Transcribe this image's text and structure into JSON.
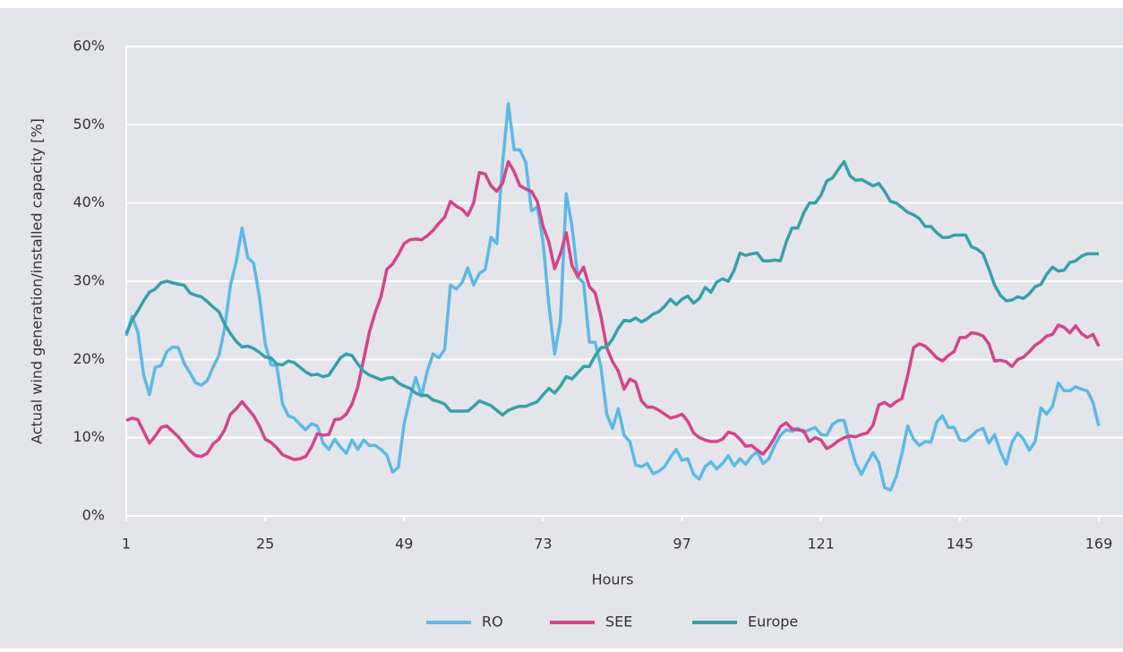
{
  "chart_data": {
    "type": "line",
    "y_label": "Actual wind generation/installed capacity [%]",
    "x_label": "Hours",
    "xlim": [
      1,
      169
    ],
    "xticks": [
      1,
      25,
      49,
      73,
      97,
      121,
      145,
      169
    ],
    "ylim": [
      0,
      60
    ],
    "yticks": [
      {
        "value": 0,
        "label": "0%"
      },
      {
        "value": 10,
        "label": "10%"
      },
      {
        "value": 20,
        "label": "20%"
      },
      {
        "value": 30,
        "label": "30%"
      },
      {
        "value": 40,
        "label": "40%"
      },
      {
        "value": 50,
        "label": "50%"
      },
      {
        "value": 60,
        "label": "60%"
      }
    ],
    "grid": true,
    "x": [
      1,
      2,
      3,
      4,
      5,
      6,
      7,
      8,
      9,
      10,
      11,
      12,
      13,
      14,
      15,
      16,
      17,
      18,
      19,
      20,
      21,
      22,
      23,
      24,
      25,
      26,
      27,
      28,
      29,
      30,
      31,
      32,
      33,
      34,
      35,
      36,
      37,
      38,
      39,
      40,
      41,
      42,
      43,
      44,
      45,
      46,
      47,
      48,
      49,
      50,
      51,
      52,
      53,
      54,
      55,
      56,
      57,
      58,
      59,
      60,
      61,
      62,
      63,
      64,
      65,
      66,
      67,
      68,
      69,
      70,
      71,
      72,
      73,
      74,
      75,
      76,
      77,
      78,
      79,
      80,
      81,
      82,
      83,
      84,
      85,
      86,
      87,
      88,
      89,
      90,
      91,
      92,
      93,
      94,
      95,
      96,
      97,
      98,
      99,
      100,
      101,
      102,
      103,
      104,
      105,
      106,
      107,
      108,
      109,
      110,
      111,
      112,
      113,
      114,
      115,
      116,
      117,
      118,
      119,
      120,
      121,
      122,
      123,
      124,
      125,
      126,
      127,
      128,
      129,
      130,
      131,
      132,
      133,
      134,
      135,
      136,
      137,
      138,
      139,
      140,
      141,
      142,
      143,
      144,
      145,
      146,
      147,
      148,
      149,
      150,
      151,
      152,
      153,
      154,
      155,
      156,
      157,
      158,
      159,
      160,
      161,
      162,
      163,
      164,
      165,
      166,
      167,
      168,
      169
    ],
    "series": [
      {
        "name": "RO",
        "color": "#5db9e6",
        "values": [
          23,
          25.5,
          23.5,
          18,
          15.5,
          19,
          19.2,
          21,
          21.6,
          21.5,
          19.5,
          18.3,
          17,
          16.7,
          17.3,
          19,
          20.5,
          24,
          29.5,
          32.5,
          36.8,
          33,
          32.3,
          28,
          22,
          19.3,
          19.2,
          14.3,
          12.8,
          12.5,
          11.7,
          11,
          11.8,
          11.5,
          9.3,
          8.5,
          9.8,
          8.8,
          8,
          9.7,
          8.5,
          9.7,
          9,
          9,
          8.5,
          7.8,
          5.6,
          6.2,
          11.8,
          15,
          17.7,
          15.3,
          18.5,
          20.7,
          20.2,
          21.3,
          29.5,
          29,
          29.8,
          31.7,
          29.5,
          31,
          31.5,
          35.6,
          34.8,
          45,
          52.7,
          46.8,
          46.8,
          45.2,
          39,
          39.5,
          35,
          27,
          20.7,
          25,
          41.2,
          37,
          30.5,
          29.8,
          22.2,
          22.2,
          19,
          13,
          11.2,
          13.7,
          10.3,
          9.5,
          6.5,
          6.3,
          6.7,
          5.4,
          5.7,
          6.3,
          7.5,
          8.5,
          7.1,
          7.3,
          5.3,
          4.7,
          6.3,
          6.9,
          6,
          6.7,
          7.7,
          6.4,
          7.3,
          6.6,
          7.6,
          8.2,
          6.7,
          7.3,
          9,
          10.3,
          11,
          10.8,
          11.2,
          10.7,
          11,
          11.3,
          10.4,
          10.3,
          11.7,
          12.2,
          12.2,
          9.3,
          6.7,
          5.3,
          6.8,
          8.1,
          6.8,
          3.6,
          3.3,
          5,
          8,
          11.5,
          9.8,
          9,
          9.5,
          9.4,
          12,
          12.8,
          11.3,
          11.3,
          9.7,
          9.6,
          10.2,
          10.9,
          11.2,
          9.3,
          10.4,
          8.2,
          6.6,
          9.4,
          10.6,
          9.8,
          8.4,
          9.5,
          13.8,
          13,
          14,
          17,
          16,
          16,
          16.5,
          16.2,
          16,
          14.5,
          11.5
        ]
      },
      {
        "name": "SEE",
        "color": "#d3458a",
        "values": [
          12.2,
          12.5,
          12.3,
          10.8,
          9.3,
          10.2,
          11.3,
          11.5,
          10.8,
          10.1,
          9.2,
          8.3,
          7.7,
          7.6,
          8,
          9.2,
          9.8,
          11,
          13,
          13.7,
          14.6,
          13.7,
          12.8,
          11.5,
          9.8,
          9.4,
          8.7,
          7.8,
          7.5,
          7.2,
          7.3,
          7.6,
          8.8,
          10.5,
          10.3,
          10.4,
          12.3,
          12.4,
          13,
          14.3,
          16.5,
          20,
          23.5,
          26,
          28,
          31.5,
          32.2,
          33.4,
          34.8,
          35.3,
          35.4,
          35.3,
          35.8,
          36.5,
          37.4,
          38.2,
          40.2,
          39.6,
          39.2,
          38.4,
          40,
          43.9,
          43.7,
          42.2,
          41.5,
          42.5,
          45.3,
          44,
          42.2,
          41.8,
          41.5,
          40.2,
          37,
          35,
          31.6,
          33.5,
          36.2,
          32,
          30.6,
          31.8,
          29.3,
          28.5,
          25.5,
          21.5,
          19.7,
          18.5,
          16.2,
          17.5,
          17.1,
          14.7,
          13.9,
          13.9,
          13.5,
          13,
          12.5,
          12.7,
          13,
          12.1,
          10.6,
          10,
          9.7,
          9.5,
          9.5,
          9.8,
          10.7,
          10.5,
          9.8,
          8.9,
          9,
          8.4,
          7.9,
          8.8,
          10,
          11.4,
          11.9,
          11.1,
          11,
          10.9,
          9.5,
          10,
          9.7,
          8.6,
          9,
          9.6,
          10,
          10.2,
          10.1,
          10.4,
          10.6,
          11.6,
          14.2,
          14.5,
          14,
          14.6,
          15,
          18,
          21.5,
          22,
          21.7,
          21,
          20.2,
          19.8,
          20.5,
          21,
          22.8,
          22.8,
          23.4,
          23.3,
          23,
          22,
          19.8,
          19.9,
          19.7,
          19.1,
          20,
          20.3,
          21,
          21.8,
          22.3,
          23,
          23.2,
          24.4,
          24.1,
          23.4,
          24.3,
          23.3,
          22.8,
          23.2,
          21.7
        ]
      },
      {
        "name": "Europe",
        "color": "#37a1a6",
        "values": [
          23.3,
          25,
          26.2,
          27.5,
          28.6,
          29,
          29.8,
          30,
          29.8,
          29.6,
          29.5,
          28.5,
          28.2,
          28,
          27.4,
          26.7,
          26.1,
          24.5,
          23.3,
          22.3,
          21.6,
          21.7,
          21.4,
          20.9,
          20.3,
          20.2,
          19.4,
          19.3,
          19.8,
          19.6,
          19,
          18.4,
          18,
          18.1,
          17.8,
          18,
          19.1,
          20.2,
          20.7,
          20.5,
          19.4,
          18.5,
          18,
          17.7,
          17.4,
          17.6,
          17.7,
          17,
          16.6,
          16.3,
          15.7,
          15.4,
          15.4,
          14.8,
          14.6,
          14.3,
          13.4,
          13.4,
          13.4,
          13.4,
          14,
          14.7,
          14.4,
          14.1,
          13.5,
          12.9,
          13.5,
          13.8,
          14,
          14,
          14.3,
          14.6,
          15.5,
          16.3,
          15.7,
          16.6,
          17.8,
          17.5,
          18.3,
          19.1,
          19.1,
          20.5,
          21.5,
          21.6,
          22.6,
          24,
          25,
          24.9,
          25.3,
          24.8,
          25.2,
          25.8,
          26.1,
          26.8,
          27.7,
          27,
          27.7,
          28.1,
          27.2,
          27.8,
          29.2,
          28.6,
          29.9,
          30.3,
          30,
          31.4,
          33.6,
          33.3,
          33.5,
          33.6,
          32.6,
          32.6,
          32.7,
          32.6,
          35,
          36.8,
          36.8,
          38.7,
          40,
          40,
          41,
          42.8,
          43.2,
          44.3,
          45.3,
          43.5,
          42.9,
          43,
          42.6,
          42.2,
          42.5,
          41.5,
          40.2,
          40,
          39.4,
          38.8,
          38.5,
          38,
          37,
          37,
          36.2,
          35.6,
          35.6,
          35.9,
          35.9,
          35.9,
          34.4,
          34.1,
          33.5,
          31.6,
          29.5,
          28.2,
          27.5,
          27.6,
          28,
          27.8,
          28.4,
          29.3,
          29.6,
          30.9,
          31.8,
          31.3,
          31.4,
          32.4,
          32.6,
          33.2,
          33.5,
          33.5,
          33.5
        ]
      }
    ]
  }
}
